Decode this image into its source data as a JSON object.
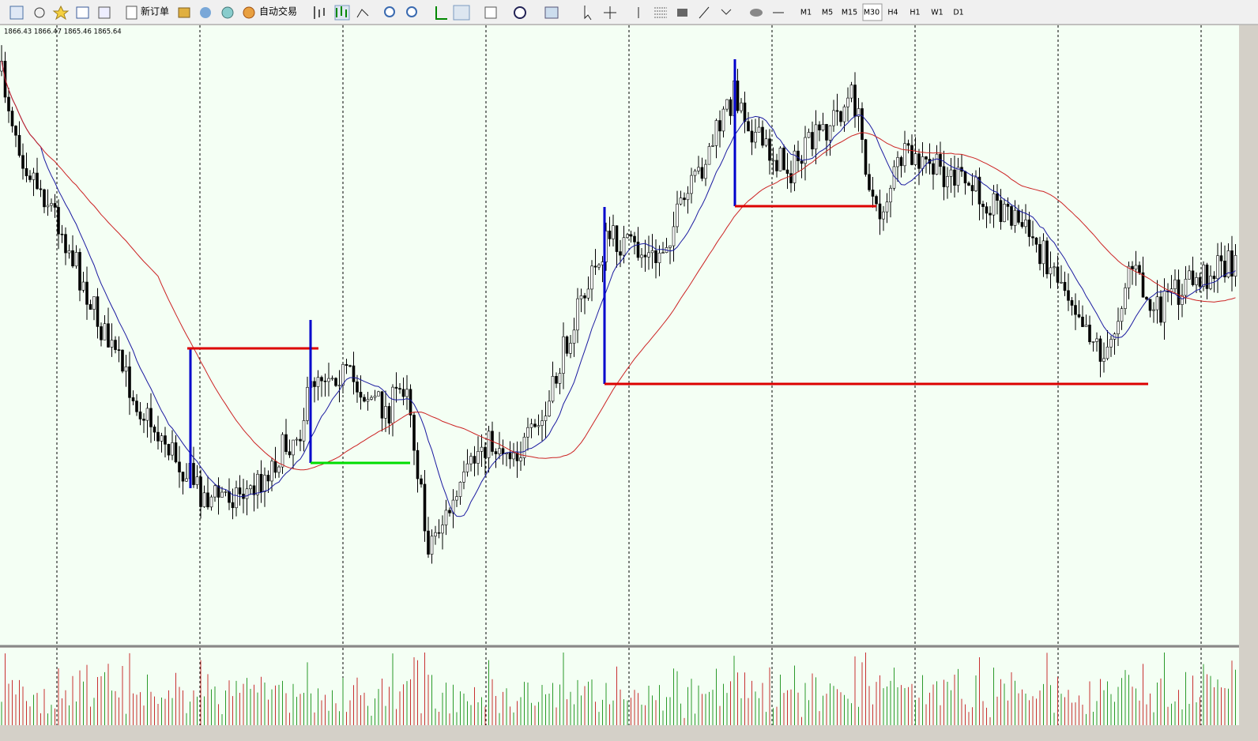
{
  "toolbar": {
    "new_order": "新订单",
    "auto_trading": "自动交易",
    "timeframes": [
      "M1",
      "M5",
      "M15",
      "M30",
      "H4",
      "H1",
      "W1",
      "D1"
    ]
  },
  "chart": {
    "ohlc": "1866.43 1866.47 1865.46 1865.64"
  }
}
